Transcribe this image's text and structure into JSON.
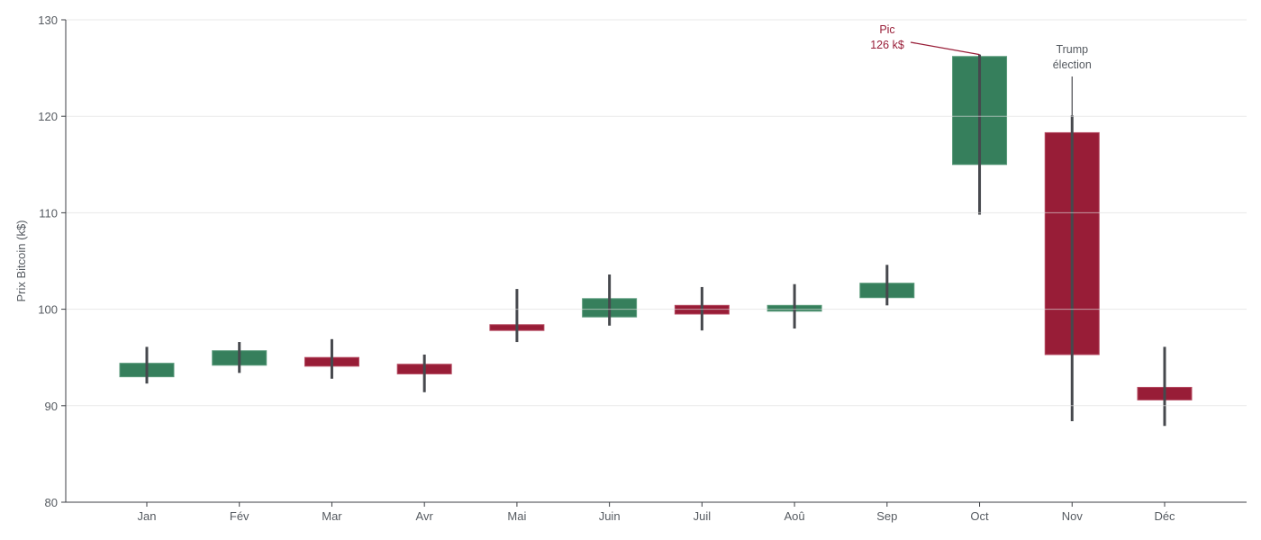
{
  "chart_data": {
    "type": "candlestick",
    "title": "",
    "xlabel": "",
    "ylabel": "Prix Bitcoin (k$)",
    "ylim": [
      80,
      130
    ],
    "yticks": [
      80,
      90,
      100,
      110,
      120,
      130
    ],
    "grid": {
      "y": true,
      "x": false
    },
    "categories": [
      "Jan",
      "Fév",
      "Mar",
      "Avr",
      "Mai",
      "Juin",
      "Juil",
      "Aoû",
      "Sep",
      "Oct",
      "Nov",
      "Déc"
    ],
    "series": [
      {
        "name": "open",
        "values": [
          93.0,
          94.2,
          95.0,
          94.3,
          98.4,
          99.2,
          100.4,
          99.8,
          101.2,
          115.0,
          118.3,
          91.9
        ]
      },
      {
        "name": "high",
        "values": [
          96.1,
          96.6,
          96.9,
          95.3,
          102.1,
          103.6,
          102.3,
          102.6,
          104.6,
          126.4,
          120.1,
          96.1
        ]
      },
      {
        "name": "low",
        "values": [
          92.3,
          93.4,
          92.8,
          91.4,
          96.6,
          98.3,
          97.8,
          98.0,
          100.4,
          109.8,
          88.4,
          87.9
        ]
      },
      {
        "name": "close",
        "values": [
          94.4,
          95.7,
          94.1,
          93.3,
          97.8,
          101.1,
          99.5,
          100.4,
          102.7,
          126.2,
          95.3,
          90.6
        ]
      }
    ],
    "colors": {
      "up": "#367f5c",
      "down": "#981d37",
      "wick": "#46484d",
      "grid": "#e6e6e6",
      "axis": "#3c3f44",
      "text": "#555a60"
    },
    "annotations": [
      {
        "category": "Oct",
        "lines": [
          "Pic",
          "126 k$"
        ],
        "point": 126.4,
        "color": "#981d37"
      },
      {
        "category": "Nov",
        "lines": [
          "Trump",
          "élection"
        ],
        "point": 120.1,
        "color": "#555a60"
      }
    ]
  }
}
